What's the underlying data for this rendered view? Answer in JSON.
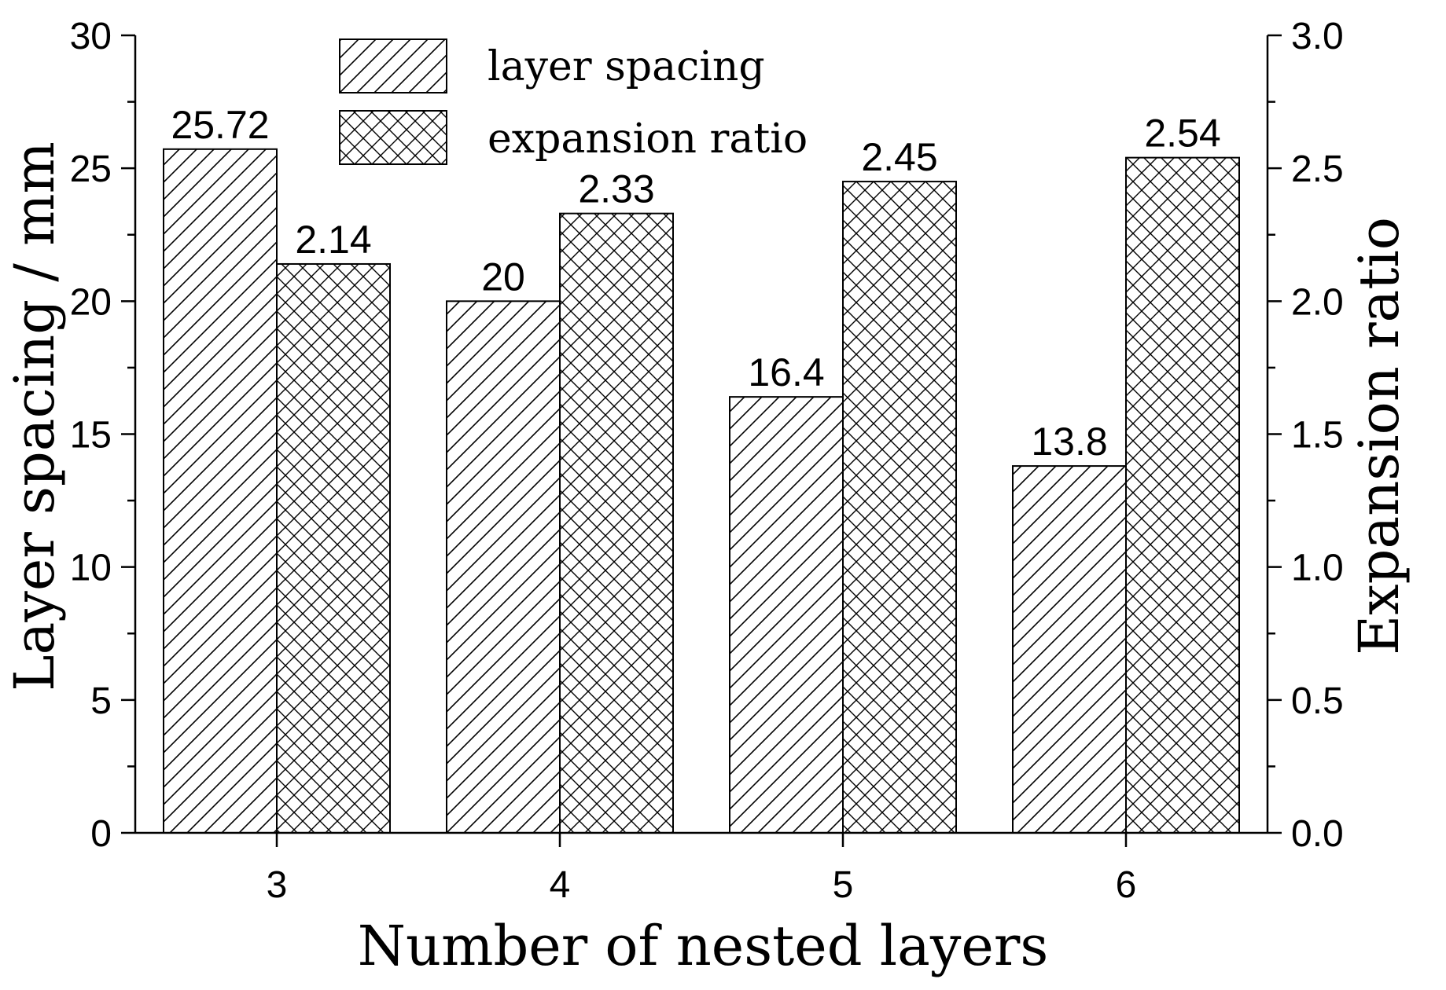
{
  "chart_data": {
    "type": "bar",
    "categories": [
      "3",
      "4",
      "5",
      "6"
    ],
    "series": [
      {
        "name": "layer spacing",
        "axis": "left",
        "pattern": "diagonal-hatch",
        "values": [
          25.72,
          20,
          16.4,
          13.8
        ],
        "labels": [
          "25.72",
          "20",
          "16.4",
          "13.8"
        ]
      },
      {
        "name": "expansion ratio",
        "axis": "right",
        "pattern": "cross-hatch",
        "values": [
          2.14,
          2.33,
          2.45,
          2.54
        ],
        "labels": [
          "2.14",
          "2.33",
          "2.45",
          "2.54"
        ]
      }
    ],
    "xlabel": "Number of nested layers",
    "ylabel": "Layer spacing / mm",
    "y2label": "Expansion ratio",
    "ylim": [
      0,
      30
    ],
    "y2lim": [
      0,
      3.0
    ],
    "yticks": [
      "0",
      "5",
      "10",
      "15",
      "20",
      "25",
      "30"
    ],
    "y2ticks": [
      "0.0",
      "0.5",
      "1.0",
      "1.5",
      "2.0",
      "2.5",
      "3.0"
    ],
    "grid": false,
    "legend_position": "top-center",
    "colors": {
      "bar_fill": "#ffffff",
      "stroke": "#000000"
    }
  }
}
